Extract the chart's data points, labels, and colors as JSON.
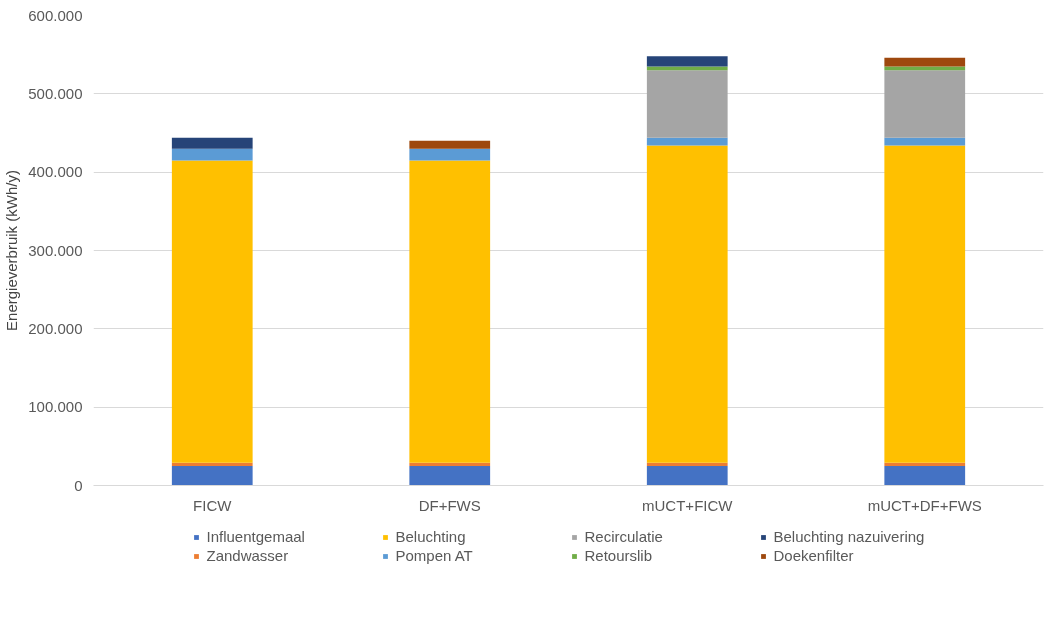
{
  "chart_data": {
    "type": "bar",
    "stacked": true,
    "ylabel": "Energieverbruik (kWh/y)",
    "categories": [
      "FICW",
      "DF+FWS",
      "mUCT+FICW",
      "mUCT+DF+FWS"
    ],
    "series": [
      {
        "name": "Influentgemaal",
        "color": "#4472c4",
        "values": [
          25000,
          25000,
          25000,
          25000
        ]
      },
      {
        "name": "Zandwasser",
        "color": "#ed7d31",
        "values": [
          4000,
          4000,
          4000,
          4000
        ]
      },
      {
        "name": "Beluchting",
        "color": "#ffc000",
        "values": [
          386000,
          386000,
          405000,
          405000
        ]
      },
      {
        "name": "Pompen AT",
        "color": "#5b9bd5",
        "values": [
          15000,
          15000,
          10000,
          10000
        ]
      },
      {
        "name": "Recirculatie",
        "color": "#a5a5a5",
        "values": [
          0,
          0,
          86000,
          86000
        ]
      },
      {
        "name": "Retourslib",
        "color": "#70ad47",
        "values": [
          0,
          0,
          5000,
          5000
        ]
      },
      {
        "name": "Beluchting nazuivering",
        "color": "#264478",
        "values": [
          14000,
          0,
          13000,
          0
        ]
      },
      {
        "name": "Doekenfilter",
        "color": "#9e480e",
        "values": [
          0,
          10000,
          0,
          11000
        ]
      }
    ],
    "ylim": [
      0,
      600000
    ],
    "yticks": [
      {
        "value": 0,
        "label": "0"
      },
      {
        "value": 100000,
        "label": "100.000"
      },
      {
        "value": 200000,
        "label": "200.000"
      },
      {
        "value": 300000,
        "label": "300.000"
      },
      {
        "value": 400000,
        "label": "400.000"
      },
      {
        "value": 500000,
        "label": "500.000"
      },
      {
        "value": 600000,
        "label": "600.000"
      }
    ],
    "grid": "y",
    "legend": "bottom"
  }
}
